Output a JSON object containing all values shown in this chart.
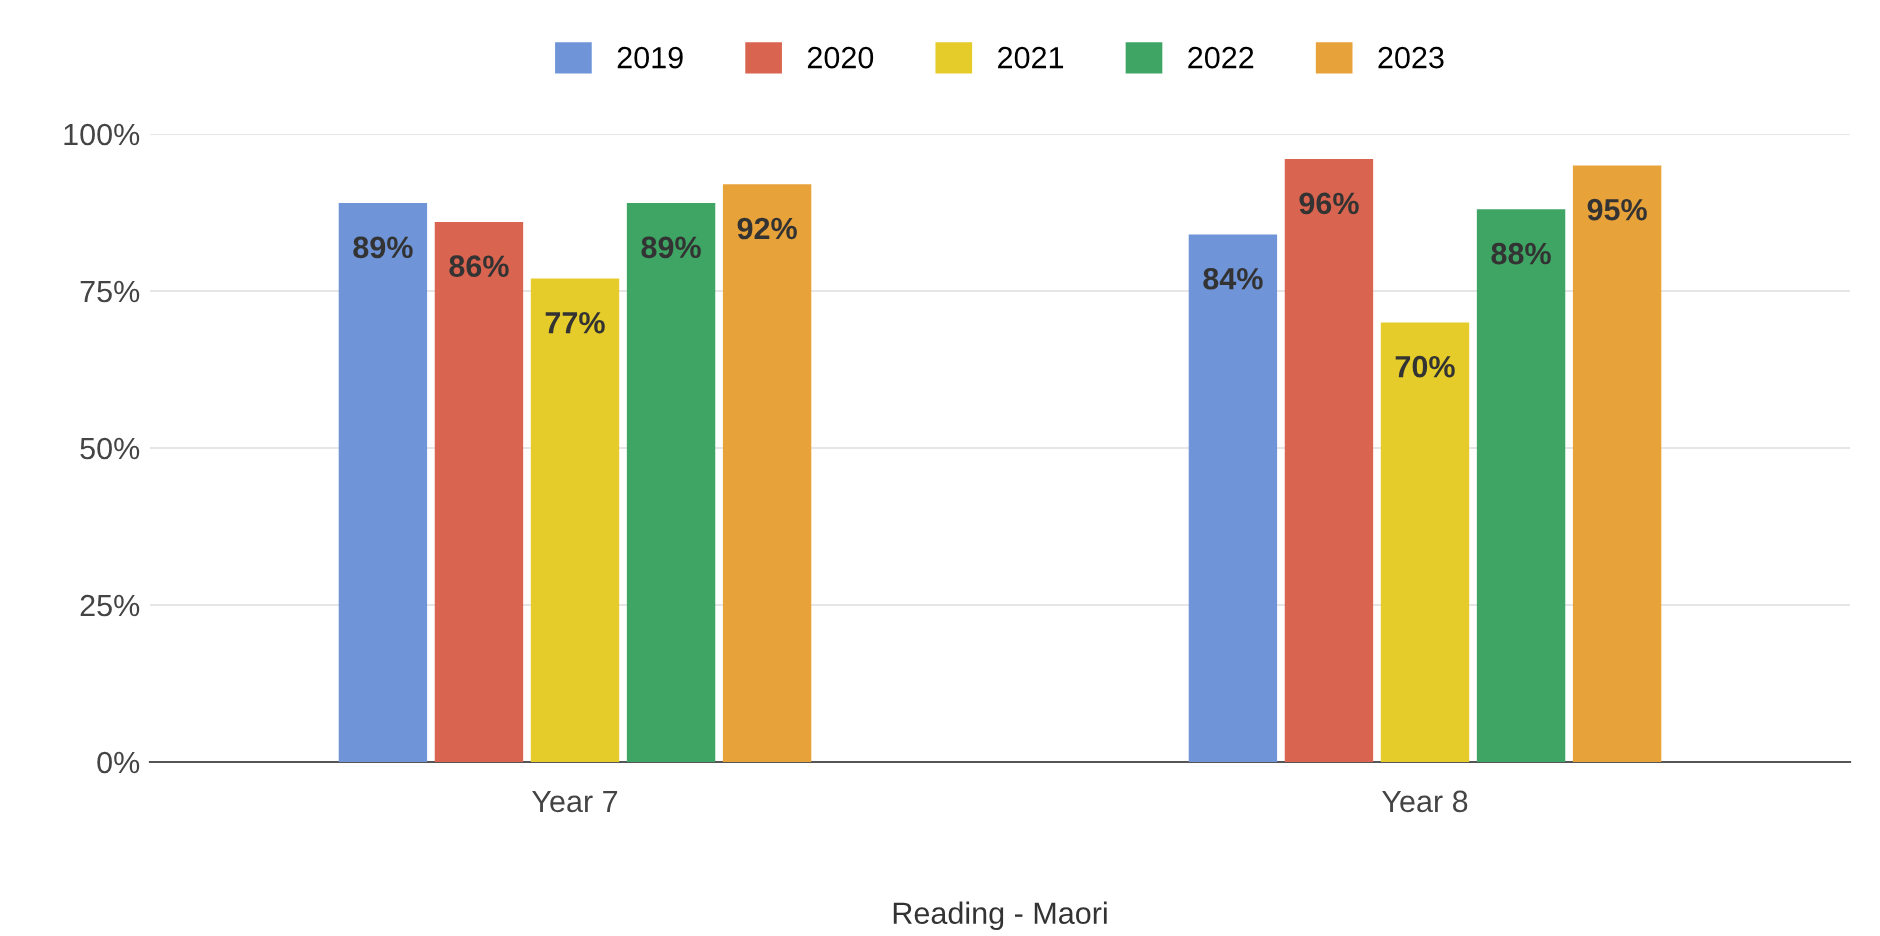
{
  "chart_data": {
    "type": "bar",
    "xlabel": "Reading - Maori",
    "categories": [
      "Year 7",
      "Year 8"
    ],
    "series": [
      {
        "name": "2019",
        "color": "#6f95d8",
        "values": [
          89,
          84
        ],
        "value_labels": [
          "89%",
          "84%"
        ]
      },
      {
        "name": "2020",
        "color": "#d9644f",
        "values": [
          86,
          96
        ],
        "value_labels": [
          "86%",
          "96%"
        ]
      },
      {
        "name": "2021",
        "color": "#e5cc2a",
        "values": [
          77,
          70
        ],
        "value_labels": [
          "77%",
          "70%"
        ]
      },
      {
        "name": "2022",
        "color": "#3fa564",
        "values": [
          89,
          88
        ],
        "value_labels": [
          "89%",
          "88%"
        ]
      },
      {
        "name": "2023",
        "color": "#e8a23a",
        "values": [
          92,
          95
        ],
        "value_labels": [
          "92%",
          "95%"
        ]
      }
    ],
    "ylim": [
      0,
      100
    ],
    "yticks": [
      {
        "value": 0,
        "label": "0%"
      },
      {
        "value": 25,
        "label": "25%"
      },
      {
        "value": 50,
        "label": "50%"
      },
      {
        "value": 75,
        "label": "75%"
      },
      {
        "value": 100,
        "label": "100%"
      }
    ],
    "grid": "y",
    "legend": "top"
  }
}
